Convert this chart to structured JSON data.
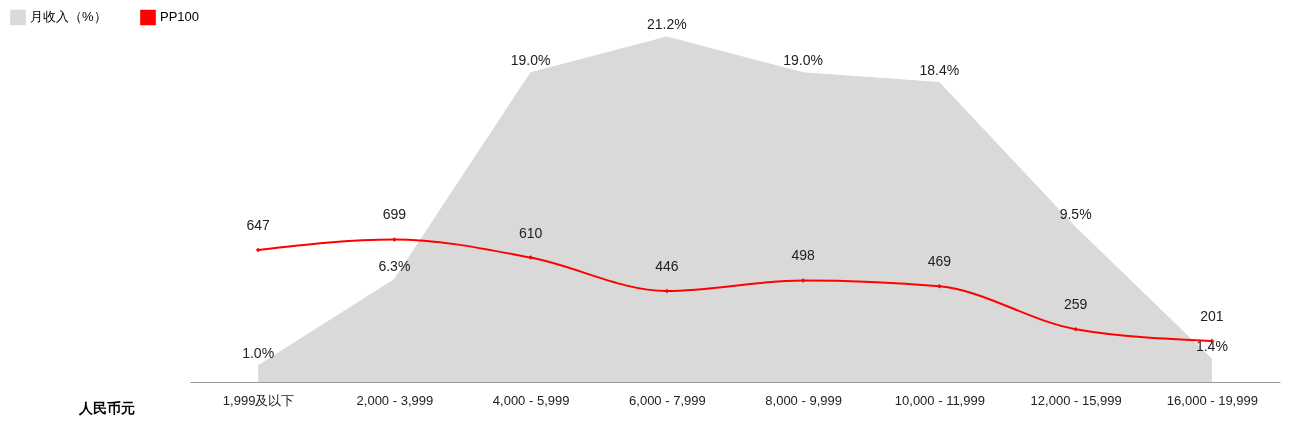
{
  "chart_data": {
    "type": "area",
    "xlabel": "人民币元",
    "categories": [
      "1,999及以下",
      "2,000 - 3,999",
      "4,000 - 5,999",
      "6,000 - 7,999",
      "8,000 - 9,999",
      "10,000 - 11,999",
      "12,000 - 15,999",
      "16,000 - 19,999"
    ],
    "series": [
      {
        "name": "月收入（%）",
        "color": "#d9d9d9",
        "values": [
          1.0,
          6.3,
          19.0,
          21.2,
          19.0,
          18.4,
          9.5,
          1.4
        ],
        "value_labels": [
          "1.0%",
          "6.3%",
          "19.0%",
          "21.2%",
          "19.0%",
          "18.4%",
          "9.5%",
          "1.4%"
        ]
      },
      {
        "name": "PP100",
        "type": "line",
        "axis": "y2",
        "color": "#ff0000",
        "values": [
          647,
          699,
          610,
          446,
          498,
          469,
          259,
          201
        ],
        "marker": "diamond"
      }
    ],
    "data_labels": true,
    "legend": "top left",
    "grid": false,
    "line_style": "solid"
  }
}
